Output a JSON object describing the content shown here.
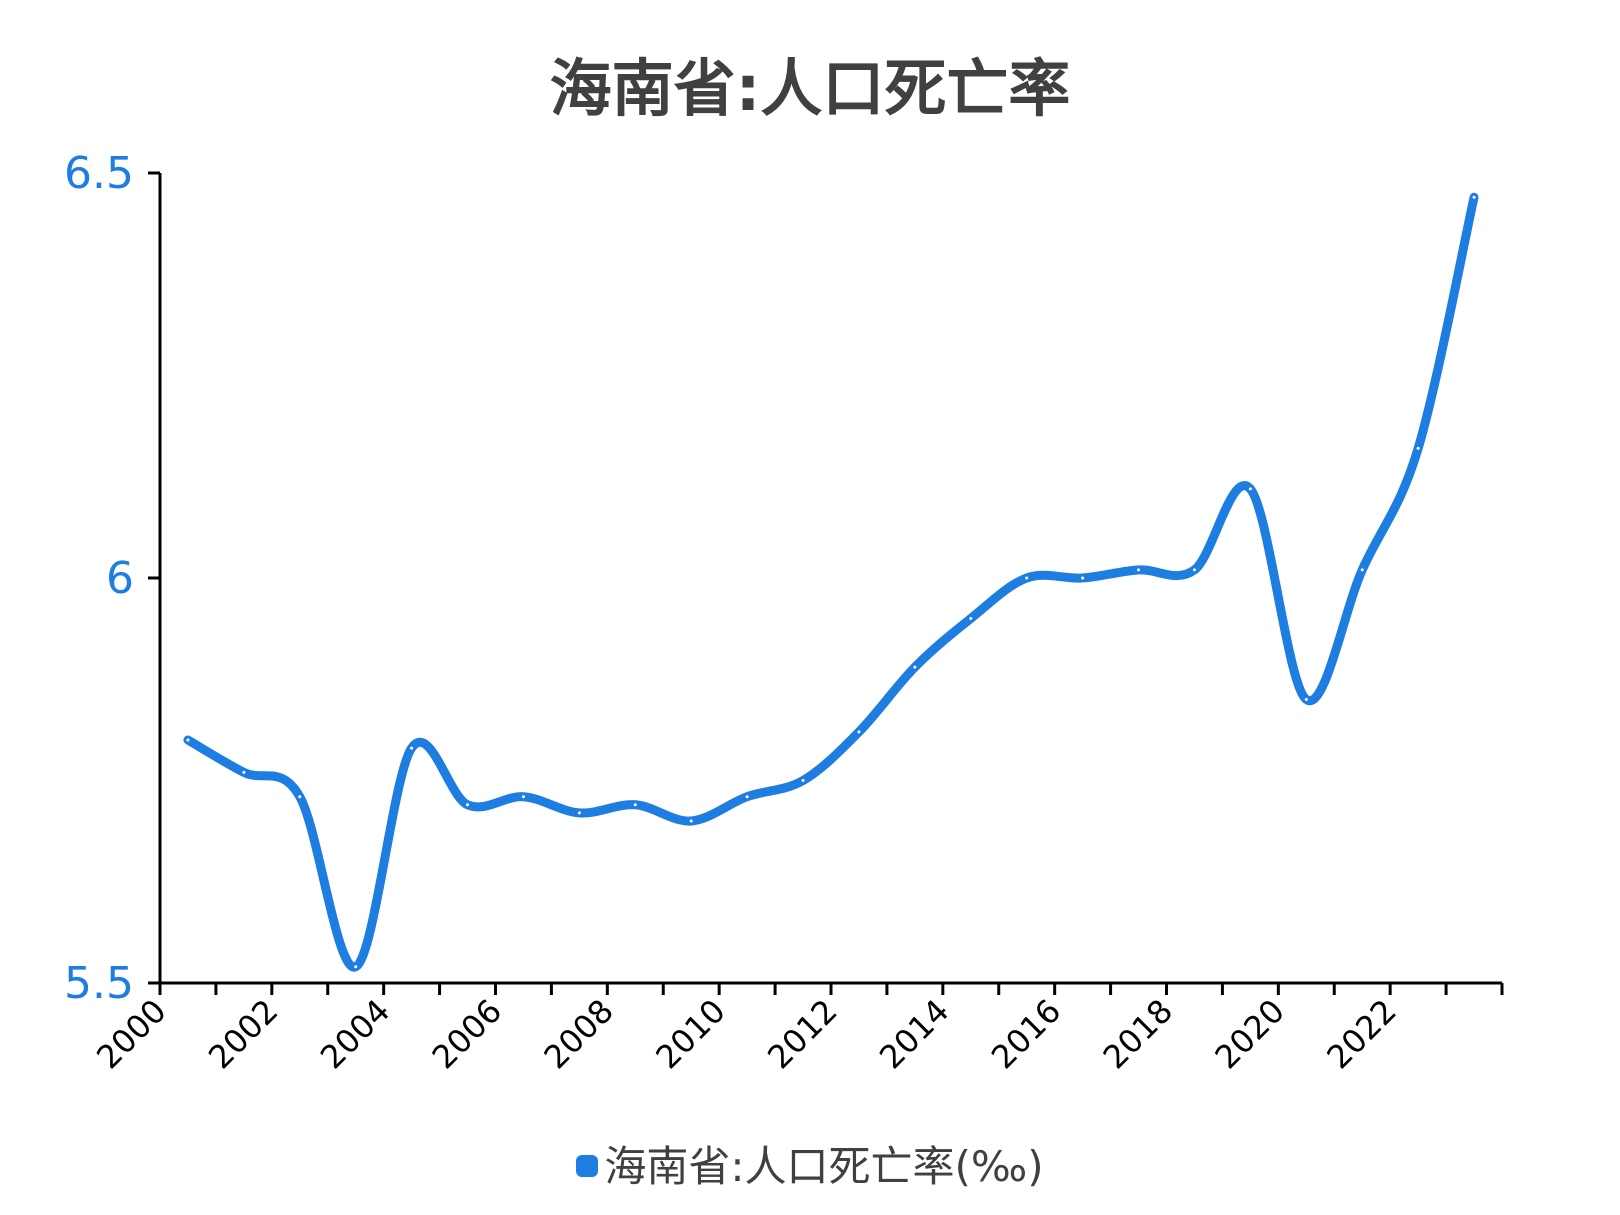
{
  "chart_data": {
    "type": "line",
    "title": "海南省:人口死亡率",
    "xlabel": "",
    "ylabel": "",
    "x_ticks": [
      "2000",
      "2002",
      "2004",
      "2006",
      "2008",
      "2010",
      "2012",
      "2014",
      "2016",
      "2018",
      "2020",
      "2022"
    ],
    "y_ticks": [
      "5.5",
      "6",
      "6.5"
    ],
    "xlim": [
      2000,
      2024
    ],
    "ylim": [
      5.5,
      6.5
    ],
    "grid": false,
    "legend_position": "bottom",
    "x": [
      2000,
      2001,
      2002,
      2003,
      2004,
      2005,
      2006,
      2007,
      2008,
      2009,
      2010,
      2011,
      2012,
      2013,
      2014,
      2015,
      2016,
      2017,
      2018,
      2019,
      2020,
      2021,
      2022,
      2023
    ],
    "series": [
      {
        "name": "海南省:人口死亡率(‰)",
        "color": "#1e7de0",
        "values": [
          5.8,
          5.76,
          5.73,
          5.52,
          5.79,
          5.72,
          5.73,
          5.71,
          5.72,
          5.7,
          5.73,
          5.75,
          5.81,
          5.89,
          5.95,
          6.0,
          6.0,
          6.01,
          6.01,
          6.11,
          5.85,
          6.01,
          6.16,
          6.47
        ]
      }
    ]
  }
}
